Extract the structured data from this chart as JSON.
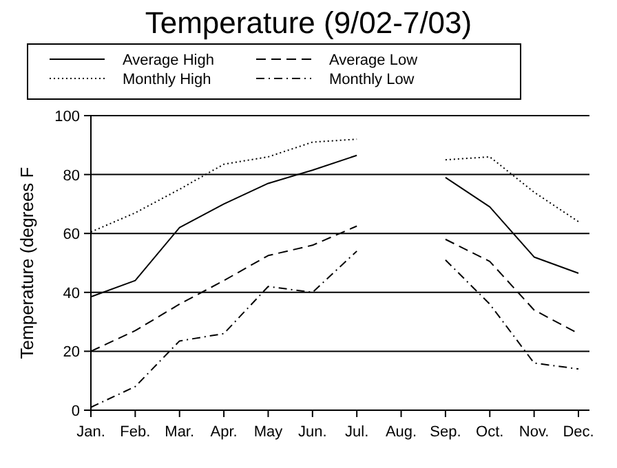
{
  "chart_data": {
    "type": "line",
    "title": "Temperature (9/02-7/03)",
    "ylabel": "Temperature (degrees F",
    "categories": [
      "Jan.",
      "Feb.",
      "Mar.",
      "Apr.",
      "May",
      "Jun.",
      "Jul.",
      "Aug.",
      "Sep.",
      "Oct.",
      "Nov.",
      "Dec."
    ],
    "series": [
      {
        "name": "Average High",
        "color": "#000000",
        "line_style": "solid",
        "values": [
          38.5,
          44,
          62,
          70,
          77,
          81.5,
          86.5,
          null,
          79,
          69,
          52,
          46.5
        ]
      },
      {
        "name": "Average Low",
        "color": "#000000",
        "line_style": "dashed",
        "values": [
          20,
          27,
          36,
          44,
          52.5,
          56,
          62.5,
          null,
          58,
          50.5,
          34,
          26
        ]
      },
      {
        "name": "Monthly High",
        "color": "#000000",
        "line_style": "dotted",
        "values": [
          60.5,
          67,
          75,
          83.5,
          86,
          91,
          92,
          null,
          85,
          86,
          74,
          64
        ]
      },
      {
        "name": "Monthly Low",
        "color": "#000000",
        "line_style": "dashdot",
        "values": [
          1,
          8,
          23.5,
          26,
          42,
          40,
          54,
          null,
          51,
          36,
          16,
          14
        ]
      }
    ],
    "ylim": [
      0,
      100
    ],
    "yticks": [
      0,
      20,
      40,
      60,
      80,
      100
    ],
    "grid": "y",
    "legend": "top",
    "marker": "none"
  }
}
